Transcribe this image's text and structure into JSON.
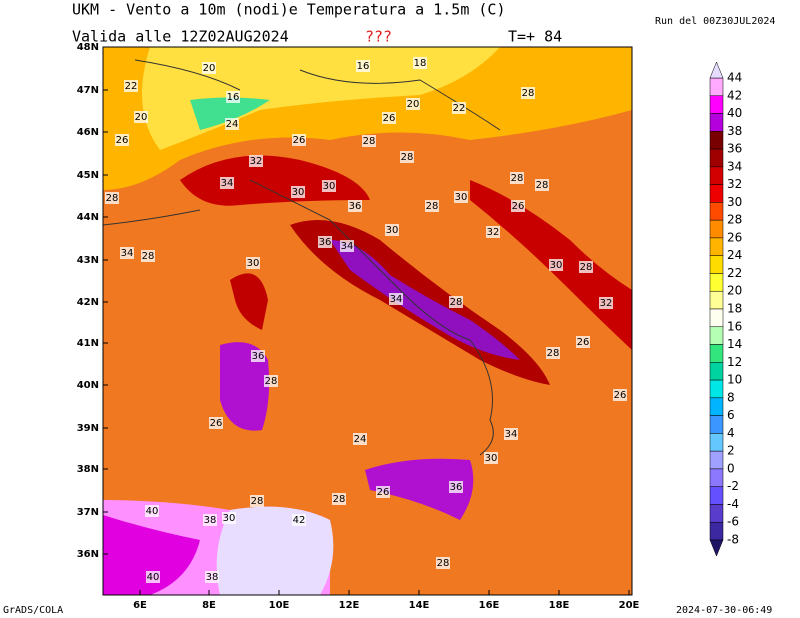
{
  "header": {
    "title": "UKM - Vento a 10m (nodi)e Temperatura a 1.5m (C)",
    "valid": "Valida alle 12Z02AUG2024",
    "flag": "???",
    "step": "T=+ 84",
    "run": "Run del 00Z30JUL2024"
  },
  "map": {
    "lat_labels": [
      "48N",
      "47N",
      "46N",
      "45N",
      "44N",
      "43N",
      "42N",
      "41N",
      "40N",
      "39N",
      "38N",
      "37N",
      "36N"
    ],
    "lon_labels": [
      "6E",
      "8E",
      "10E",
      "12E",
      "14E",
      "16E",
      "18E",
      "20E"
    ],
    "contour_labels": [
      "22",
      "20",
      "16",
      "16",
      "18",
      "20",
      "22",
      "28",
      "26",
      "24",
      "20",
      "26",
      "32",
      "34",
      "30",
      "30",
      "36",
      "34",
      "30",
      "28",
      "26",
      "30",
      "28",
      "28",
      "30",
      "32",
      "36",
      "28",
      "28",
      "26",
      "28",
      "28",
      "34",
      "36",
      "30",
      "28",
      "34",
      "28",
      "28",
      "32",
      "26",
      "40",
      "38",
      "30",
      "42",
      "38",
      "40",
      "28",
      "28",
      "24",
      "26",
      "26",
      "30",
      "28",
      "36",
      "34",
      "26",
      "28"
    ]
  },
  "colorbar": {
    "labels": [
      44,
      42,
      40,
      38,
      36,
      34,
      32,
      30,
      28,
      26,
      24,
      22,
      20,
      18,
      16,
      14,
      12,
      10,
      8,
      6,
      4,
      2,
      0,
      -2,
      -4,
      -6,
      -8
    ]
  },
  "footer": {
    "left": "GrADS/COLA",
    "right": "2024-07-30-06:49"
  }
}
